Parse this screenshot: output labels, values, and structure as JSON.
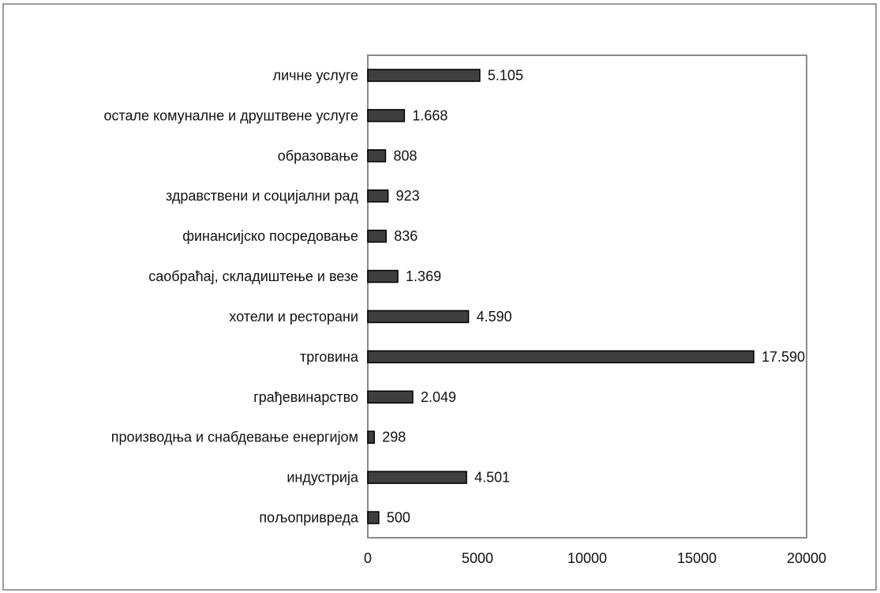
{
  "chart_data": {
    "type": "bar",
    "orientation": "horizontal",
    "categories": [
      "пољопривреда",
      "индустрија",
      "производња и снабдевање енергијом",
      "грађевинарство",
      "трговина",
      "хотели и ресторани",
      "саобраћај, складиштење и везе",
      "финансијско посредовање",
      "здравствени и социјални рад",
      "образовање",
      "остале комуналне и друштвене услуге",
      "личне услуге"
    ],
    "values": [
      500,
      4501,
      298,
      2049,
      17590,
      4590,
      1369,
      836,
      923,
      808,
      1668,
      5105
    ],
    "data_labels": [
      "500",
      "4.501",
      "298",
      "2.049",
      "17.590",
      "4.590",
      "1.369",
      "836",
      "923",
      "808",
      "1.668",
      "5.105"
    ],
    "xlim": [
      0,
      20000
    ],
    "x_ticks": [
      "0",
      "5000",
      "10000",
      "15000",
      "20000"
    ],
    "title": "",
    "xlabel": "",
    "ylabel": "",
    "grid": false,
    "bar_color": "#3f3f3f",
    "legend": "none"
  }
}
